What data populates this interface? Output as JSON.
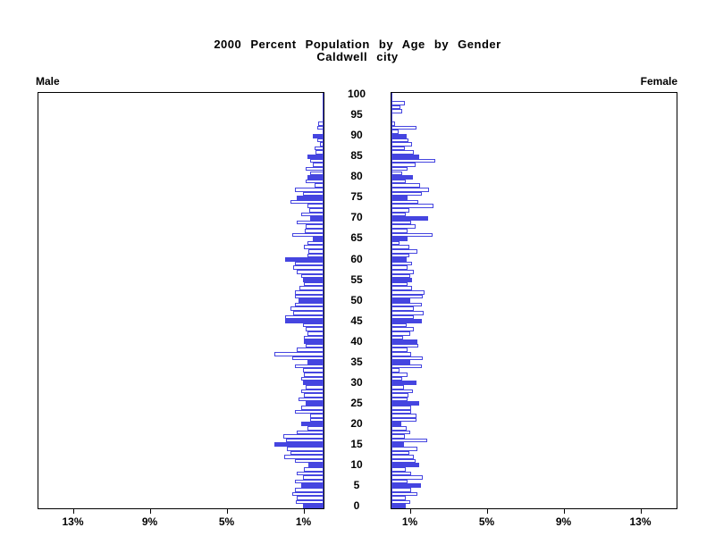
{
  "title": {
    "line1": "2000 Percent Population by Age by Gender",
    "line2": "Caldwell city"
  },
  "panel_labels": {
    "left": "Male",
    "right": "Female"
  },
  "colors": {
    "bar_outline": "#4545E0",
    "bar_fill_highlight": "#4545E0",
    "bar_fill_normal": "#FFFFFF",
    "frame": "#000000",
    "text": "#000000",
    "background": "#FFFFFF"
  },
  "chart_data": {
    "type": "bar",
    "subtype": "population-pyramid",
    "title": "2000 Percent Population by Age by Gender",
    "subtitle": "Caldwell city",
    "age_min": 0,
    "age_max": 100,
    "highlight_every": 5,
    "age_tick_labels": [
      "0",
      "5",
      "10",
      "15",
      "20",
      "25",
      "30",
      "35",
      "40",
      "45",
      "50",
      "55",
      "60",
      "65",
      "70",
      "75",
      "80",
      "85",
      "90",
      "95",
      "100"
    ],
    "x_axis": {
      "unit": "percent",
      "tick_values": [
        13,
        9,
        5,
        1
      ],
      "male_tick_labels": [
        "13%",
        "9%",
        "5%",
        "1%"
      ],
      "female_tick_labels": [
        "1%",
        "5%",
        "9%",
        "13%"
      ],
      "xlim_pct": [
        0,
        14.84
      ]
    },
    "series": [
      {
        "name": "Male",
        "side": "left",
        "values": [
          1.05,
          1.45,
          1.4,
          1.62,
          1.5,
          1.17,
          1.48,
          1.05,
          1.4,
          1.01,
          0.8,
          1.5,
          2.07,
          1.71,
          1.9,
          2.57,
          1.95,
          2.1,
          1.4,
          0.86,
          1.17,
          0.7,
          0.7,
          1.48,
          1.17,
          0.93,
          1.32,
          1.01,
          1.17,
          0.93,
          1.09,
          1.17,
          1.01,
          1.09,
          1.48,
          0.86,
          1.64,
          2.57,
          1.4,
          0.93,
          1.01,
          1.01,
          0.86,
          0.93,
          1.09,
          2.02,
          2.02,
          1.56,
          1.71,
          1.48,
          1.32,
          1.48,
          1.48,
          1.25,
          1.01,
          1.09,
          1.17,
          1.4,
          1.56,
          1.48,
          2.02,
          0.86,
          0.78,
          1.01,
          0.86,
          0.55,
          1.64,
          0.97,
          0.93,
          1.4,
          0.7,
          1.17,
          0.75,
          0.86,
          1.71,
          1.4,
          1.09,
          1.48,
          0.47,
          0.93,
          0.86,
          0.7,
          0.93,
          0.55,
          0.7,
          0.86,
          0.44,
          0.47,
          0.19,
          0.34,
          0.58,
          0.0,
          0.31,
          0.26,
          0.0,
          0.0,
          0.0,
          0.0,
          0.0,
          0.0,
          0.0
        ]
      },
      {
        "name": "Female",
        "side": "right",
        "values": [
          0.75,
          0.97,
          0.75,
          1.37,
          1.01,
          1.53,
          0.86,
          1.64,
          1.01,
          0.75,
          1.43,
          1.25,
          1.17,
          0.93,
          1.37,
          0.65,
          1.84,
          0.7,
          0.97,
          0.78,
          0.5,
          1.32,
          1.32,
          1.01,
          1.01,
          1.43,
          0.86,
          0.9,
          1.12,
          0.65,
          1.32,
          0.55,
          0.86,
          0.44,
          1.56,
          0.97,
          1.64,
          1.01,
          0.86,
          1.4,
          1.37,
          0.59,
          0.97,
          1.17,
          0.81,
          1.56,
          1.17,
          1.68,
          1.17,
          1.56,
          0.97,
          1.64,
          1.74,
          1.09,
          0.86,
          1.06,
          0.97,
          1.17,
          0.86,
          1.09,
          0.81,
          0.93,
          1.37,
          0.93,
          0.44,
          0.86,
          2.15,
          0.86,
          1.25,
          1.01,
          1.9,
          0.75,
          0.93,
          2.18,
          1.4,
          0.86,
          1.56,
          1.95,
          1.48,
          0.75,
          1.12,
          0.55,
          0.86,
          1.25,
          2.3,
          1.43,
          1.17,
          0.7,
          1.09,
          0.9,
          0.78,
          0.39,
          1.28,
          0.19,
          0.0,
          0.0,
          0.55,
          0.47,
          0.7,
          0.0,
          0.0
        ]
      }
    ],
    "legend": "none",
    "grid": false
  }
}
